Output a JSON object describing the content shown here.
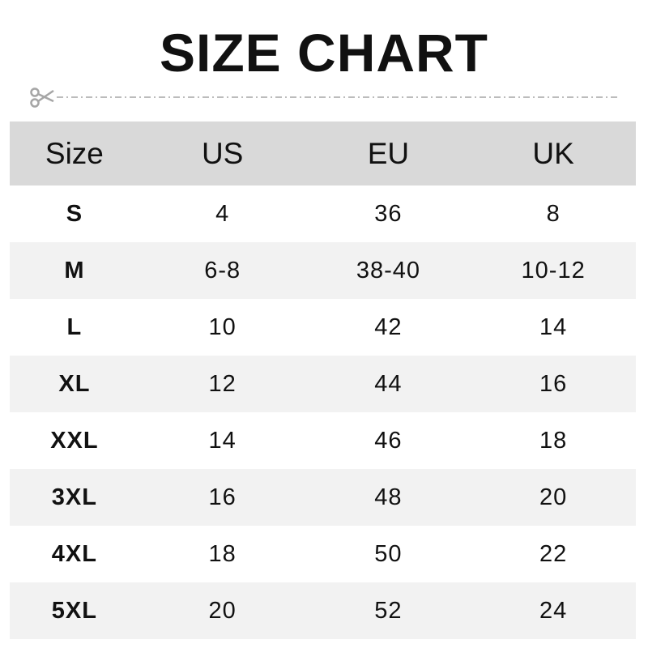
{
  "title": "SIZE CHART",
  "cut_icon": "scissors-icon",
  "colors": {
    "header_bg": "#d9d9d9",
    "stripe_bg": "#f2f2f2",
    "dash": "#a6a6a6"
  },
  "table": {
    "headers": [
      "Size",
      "US",
      "EU",
      "UK"
    ],
    "rows": [
      [
        "S",
        "4",
        "36",
        "8"
      ],
      [
        "M",
        "6-8",
        "38-40",
        "10-12"
      ],
      [
        "L",
        "10",
        "42",
        "14"
      ],
      [
        "XL",
        "12",
        "44",
        "16"
      ],
      [
        "XXL",
        "14",
        "46",
        "18"
      ],
      [
        "3XL",
        "16",
        "48",
        "20"
      ],
      [
        "4XL",
        "18",
        "50",
        "22"
      ],
      [
        "5XL",
        "20",
        "52",
        "24"
      ]
    ]
  }
}
